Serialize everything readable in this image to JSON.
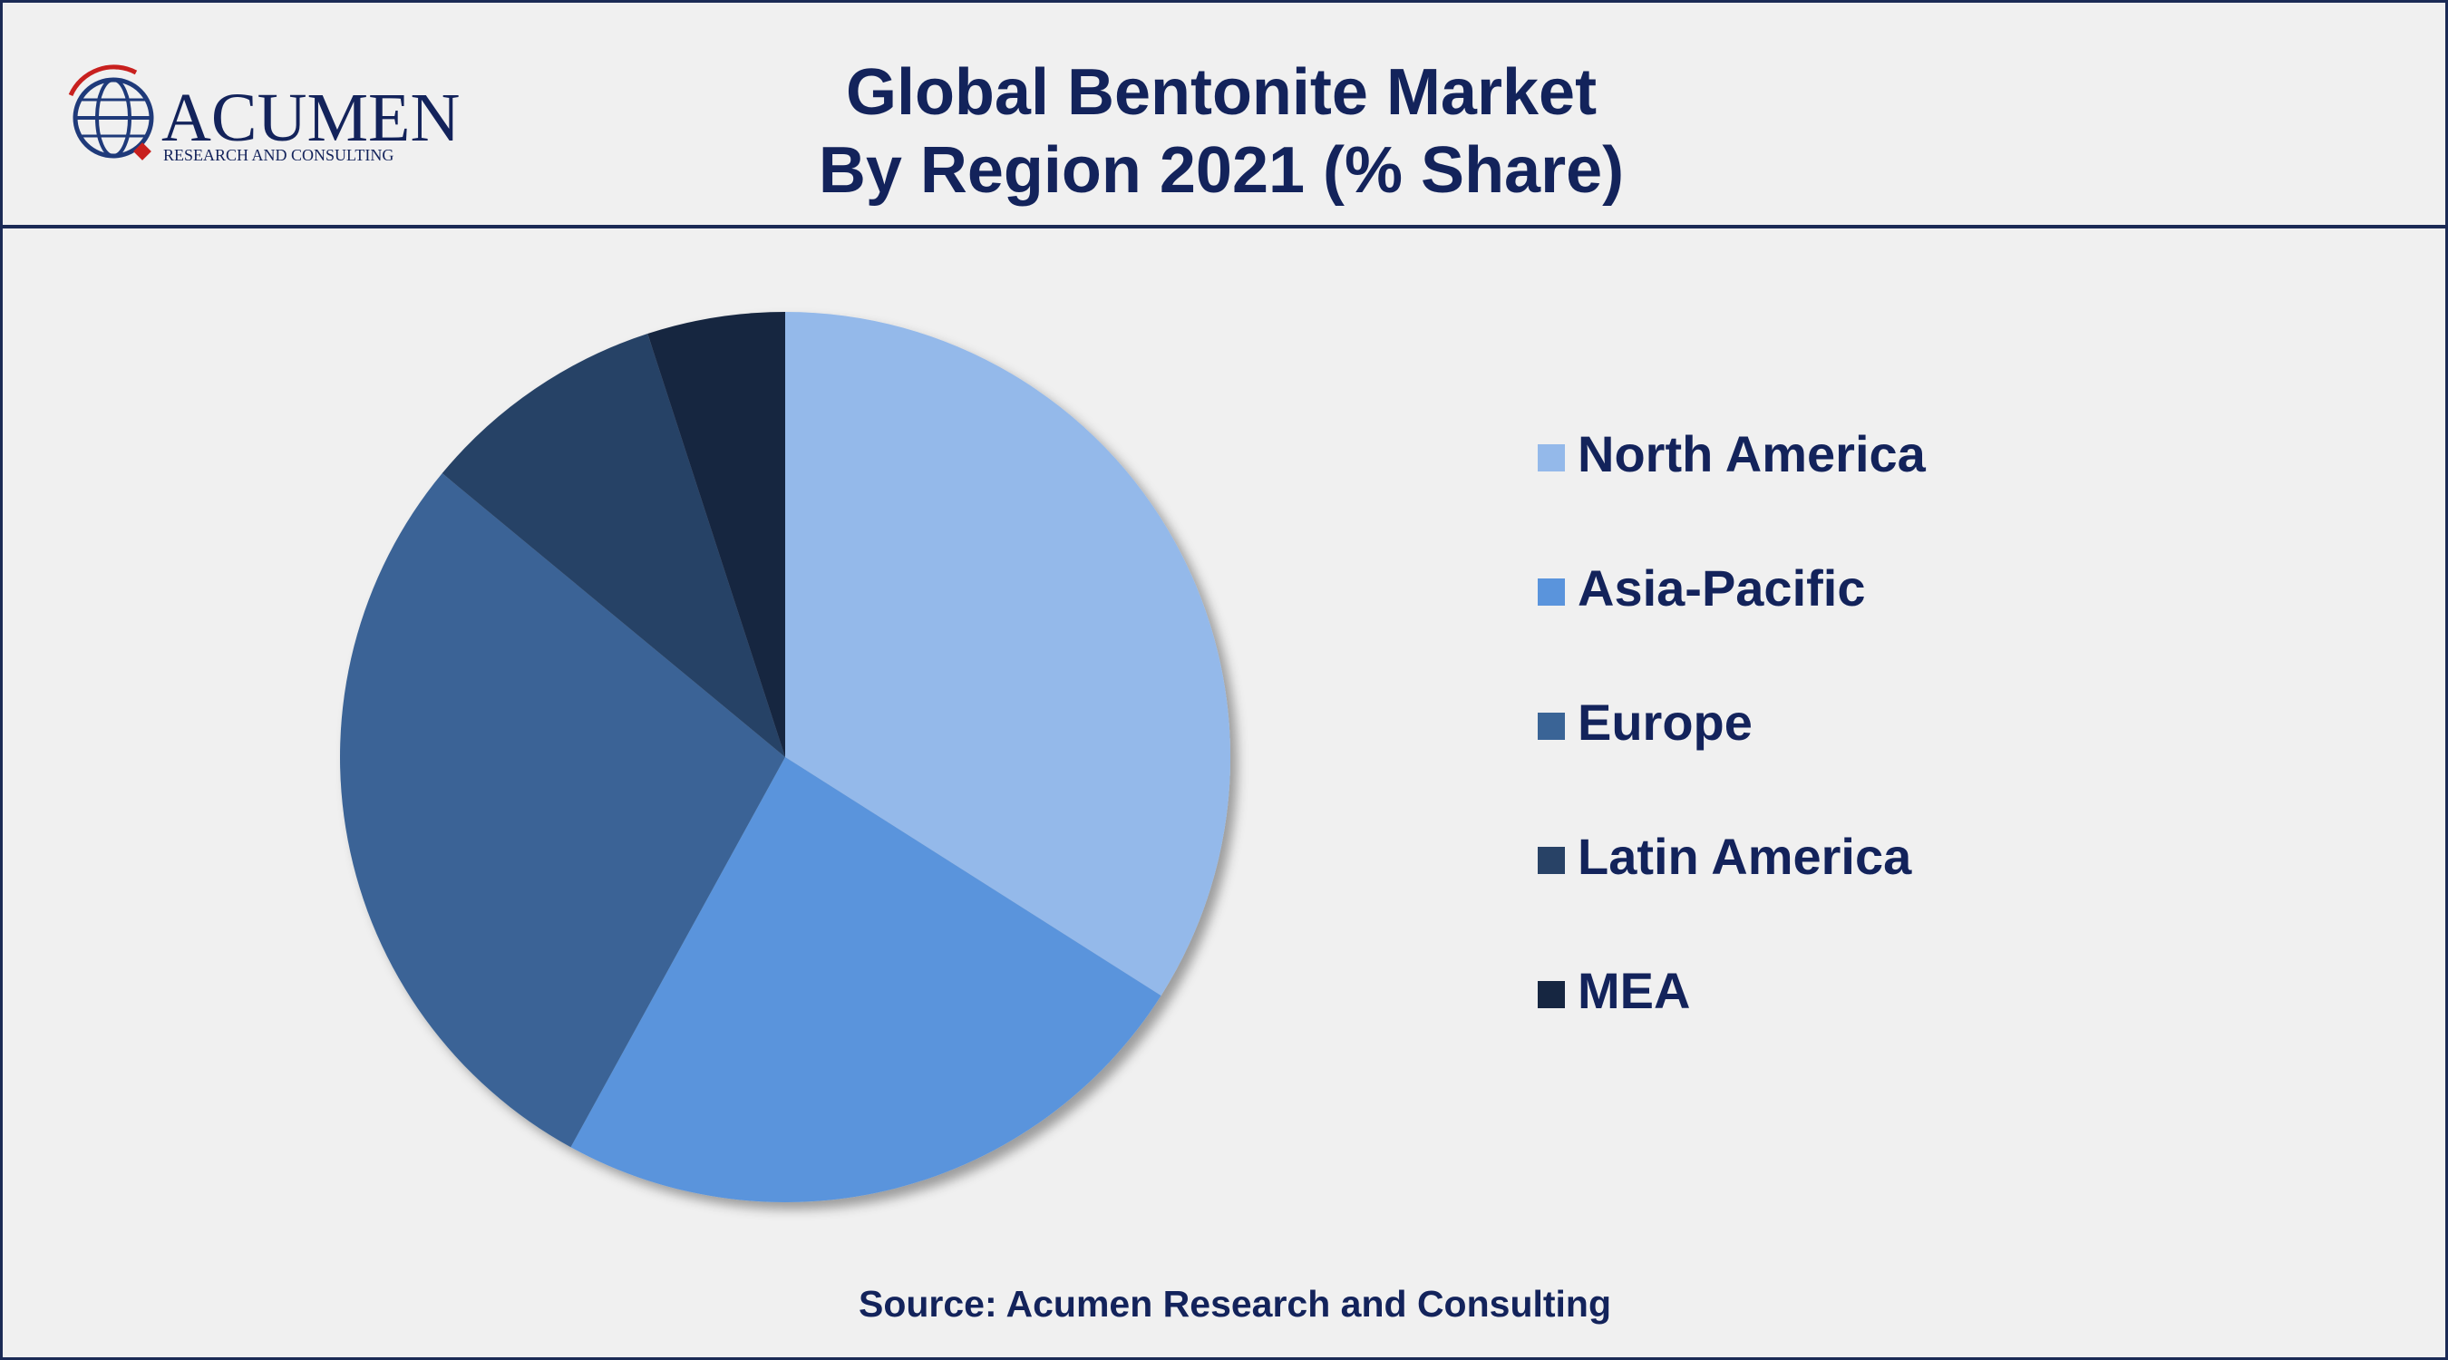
{
  "logo": {
    "name": "ACUMEN",
    "tagline": "RESEARCH AND CONSULTING"
  },
  "chart_data": {
    "type": "pie",
    "title": "Global Bentonite Market",
    "subtitle": "By Region 2021 (% Share)",
    "categories": [
      "North America",
      "Asia-Pacific",
      "Europe",
      "Latin America",
      "MEA"
    ],
    "values": [
      34,
      24,
      28,
      9,
      5
    ],
    "colors": [
      "#94b9ea",
      "#5a94dc",
      "#3a6496",
      "#284266",
      "#162641"
    ],
    "legend": "right",
    "source": "Source: Acumen Research and Consulting"
  }
}
